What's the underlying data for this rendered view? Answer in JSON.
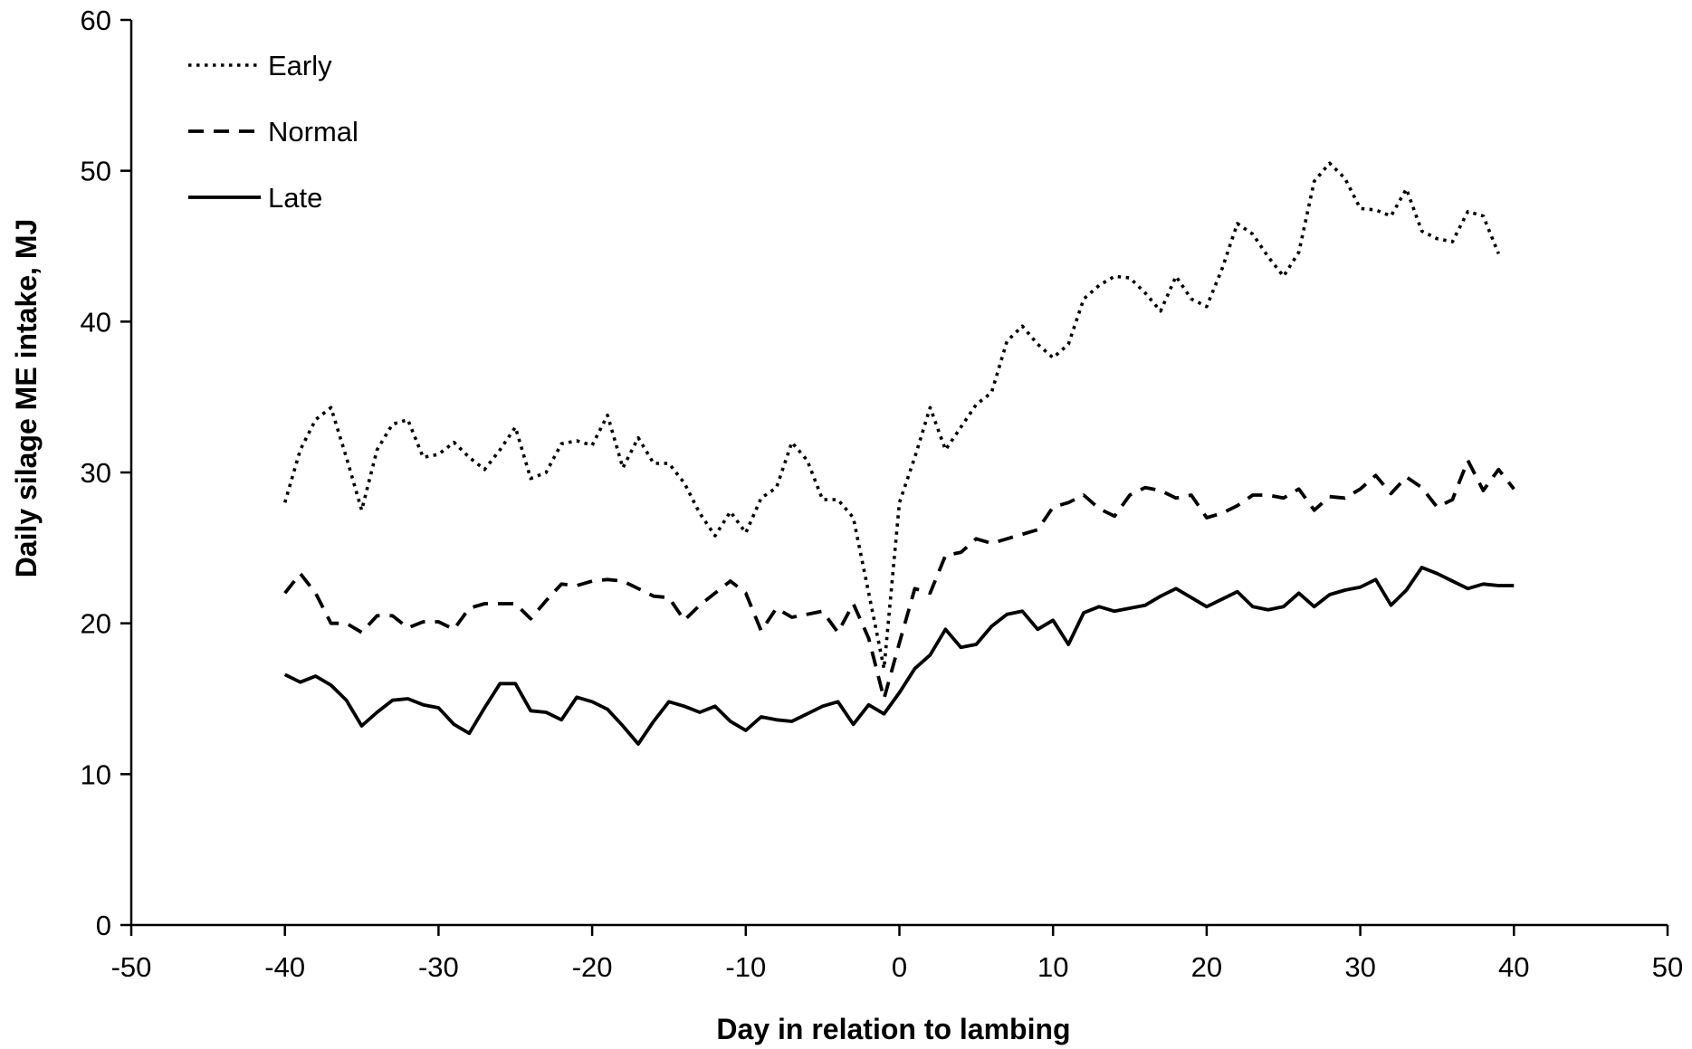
{
  "chart_data": {
    "type": "line",
    "title": "",
    "xlabel": "Day in relation to lambing",
    "ylabel": "Daily silage ME intake, MJ",
    "xlim": [
      -50,
      50
    ],
    "ylim": [
      0,
      60
    ],
    "xticks": [
      -50,
      -40,
      -30,
      -20,
      -10,
      0,
      10,
      20,
      30,
      40,
      50
    ],
    "yticks": [
      0,
      10,
      20,
      30,
      40,
      50,
      60
    ],
    "grid": false,
    "legend_position": "top-left",
    "x": [
      -40,
      -39,
      -38,
      -37,
      -36,
      -35,
      -34,
      -33,
      -32,
      -31,
      -30,
      -29,
      -28,
      -27,
      -26,
      -25,
      -24,
      -23,
      -22,
      -21,
      -20,
      -19,
      -18,
      -17,
      -16,
      -15,
      -14,
      -13,
      -12,
      -11,
      -10,
      -9,
      -8,
      -7,
      -6,
      -5,
      -4,
      -3,
      -2,
      -1,
      0,
      1,
      2,
      3,
      4,
      5,
      6,
      7,
      8,
      9,
      10,
      11,
      12,
      13,
      14,
      15,
      16,
      17,
      18,
      19,
      20,
      21,
      22,
      23,
      24,
      25,
      26,
      27,
      28,
      29,
      30,
      31,
      32,
      33,
      34,
      35,
      36,
      37,
      38,
      39,
      40
    ],
    "series": [
      {
        "name": "Early",
        "style": "dotted",
        "values": [
          28.0,
          31.5,
          33.5,
          34.3,
          31.0,
          27.5,
          31.5,
          33.2,
          33.5,
          31.0,
          31.2,
          32.0,
          31.0,
          30.2,
          31.5,
          33.0,
          29.6,
          30.0,
          31.9,
          32.1,
          31.8,
          33.8,
          30.3,
          32.3,
          30.6,
          30.6,
          29.3,
          27.3,
          25.8,
          27.4,
          26.0,
          28.3,
          29.0,
          32.0,
          30.8,
          28.2,
          28.2,
          27.0,
          22.0,
          17.0,
          28.0,
          31.0,
          34.3,
          31.5,
          33.0,
          34.5,
          35.3,
          38.7,
          39.7,
          38.5,
          37.6,
          38.5,
          41.5,
          42.4,
          43.0,
          42.9,
          41.9,
          40.7,
          43.0,
          41.5,
          41.0,
          43.5,
          46.5,
          45.8,
          44.3,
          43.0,
          44.6,
          49.3,
          50.5,
          49.5,
          47.5,
          47.4,
          47.0,
          48.8,
          46.0,
          45.5,
          45.3,
          47.3,
          47.0,
          44.5,
          null
        ]
      },
      {
        "name": "Normal",
        "style": "dashed",
        "values": [
          22.0,
          23.3,
          22.0,
          20.0,
          20.0,
          19.4,
          20.5,
          20.5,
          19.7,
          20.1,
          20.1,
          19.6,
          21.0,
          21.3,
          21.3,
          21.3,
          20.3,
          21.5,
          22.6,
          22.5,
          22.8,
          22.9,
          22.8,
          22.3,
          21.8,
          21.7,
          20.2,
          21.2,
          22.0,
          22.8,
          22.0,
          19.5,
          21.0,
          20.4,
          20.6,
          20.8,
          19.4,
          21.3,
          19.0,
          15.0,
          18.7,
          22.3,
          22.0,
          24.5,
          24.7,
          25.6,
          25.3,
          25.6,
          25.9,
          26.2,
          27.7,
          28.0,
          28.5,
          27.6,
          27.1,
          28.5,
          29.0,
          28.8,
          28.3,
          28.5,
          27.0,
          27.3,
          27.8,
          28.5,
          28.5,
          28.3,
          28.9,
          27.5,
          28.4,
          28.3,
          28.9,
          29.8,
          28.6,
          29.7,
          29.0,
          27.7,
          28.2,
          30.8,
          28.8,
          30.2,
          28.9
        ]
      },
      {
        "name": "Late",
        "style": "solid",
        "values": [
          16.6,
          16.1,
          16.5,
          15.9,
          14.9,
          13.2,
          14.1,
          14.9,
          15.0,
          14.6,
          14.4,
          13.3,
          12.7,
          14.4,
          16.0,
          16.0,
          14.2,
          14.1,
          13.6,
          15.1,
          14.8,
          14.3,
          13.2,
          12.0,
          13.5,
          14.8,
          14.5,
          14.1,
          14.5,
          13.5,
          12.9,
          13.8,
          13.6,
          13.5,
          14.0,
          14.5,
          14.8,
          13.3,
          14.6,
          14.0,
          15.4,
          17.0,
          17.9,
          19.6,
          18.4,
          18.6,
          19.8,
          20.6,
          20.8,
          19.6,
          20.2,
          18.6,
          20.7,
          21.1,
          20.8,
          21.0,
          21.2,
          21.8,
          22.3,
          21.7,
          21.1,
          21.6,
          22.1,
          21.1,
          20.9,
          21.1,
          22.0,
          21.1,
          21.9,
          22.2,
          22.4,
          22.9,
          21.2,
          22.2,
          23.7,
          23.3,
          22.8,
          22.3,
          22.6,
          22.5,
          22.5
        ]
      }
    ]
  }
}
